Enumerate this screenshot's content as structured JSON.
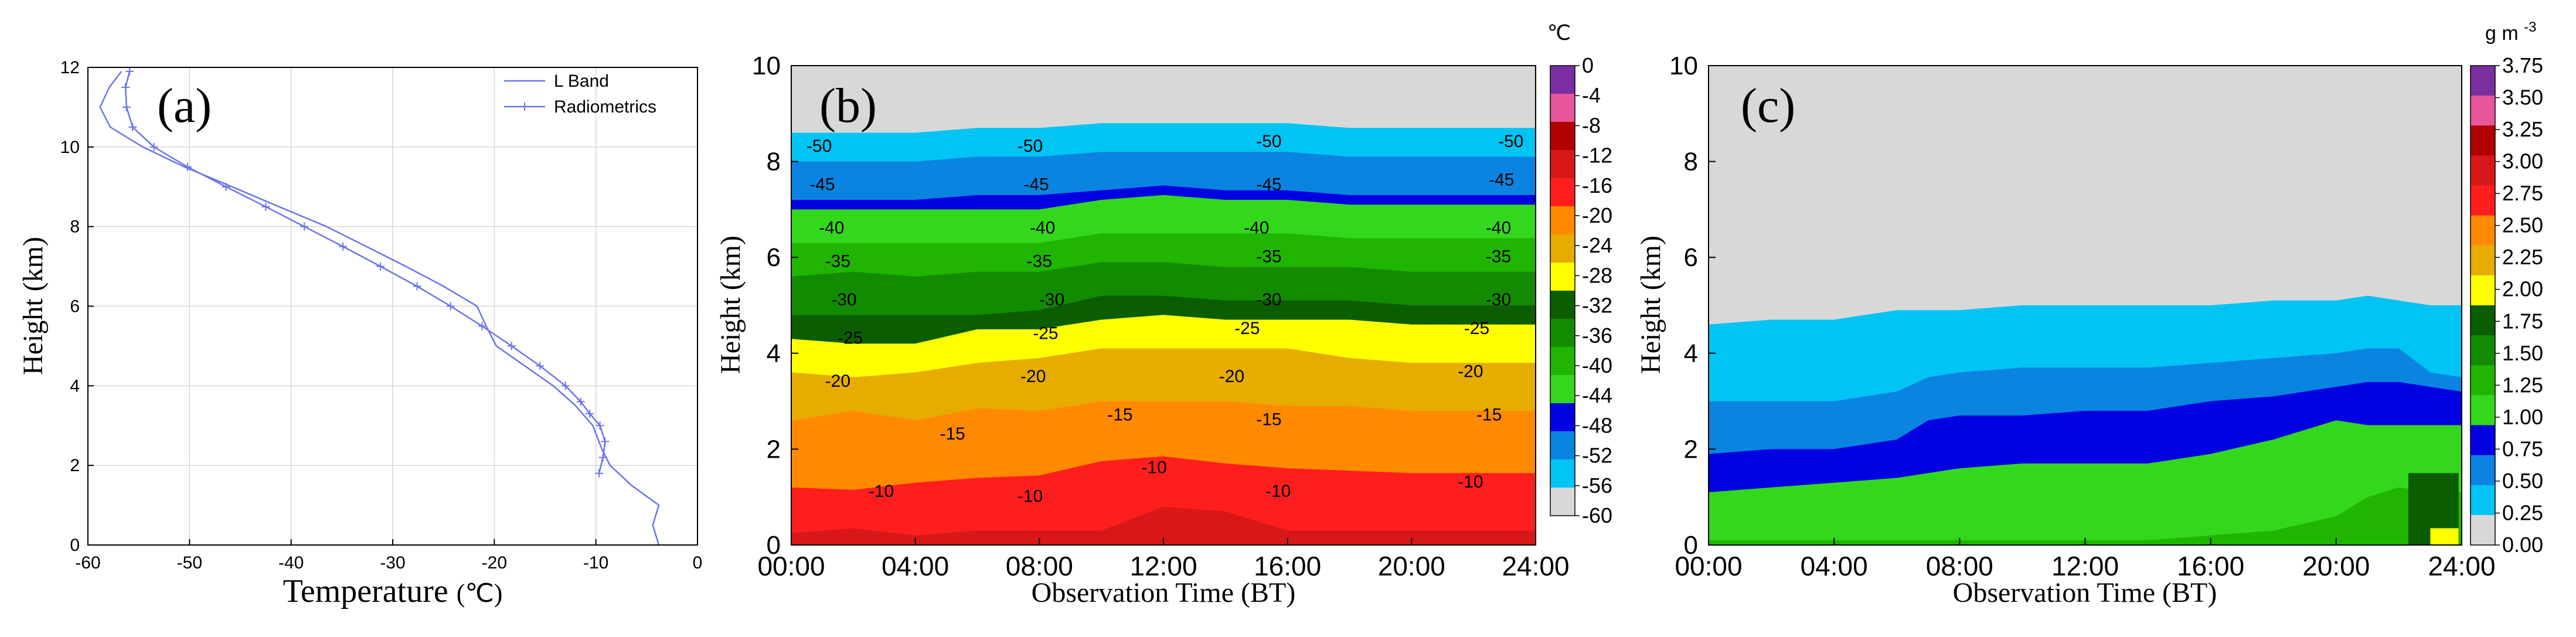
{
  "panels": {
    "a": {
      "label": "(a)",
      "chart_data": {
        "type": "line",
        "xlabel": "Temperature",
        "xlabel_unit": "(℃)",
        "ylabel": "Height (km)",
        "xlim": [
          -60,
          0
        ],
        "ylim": [
          0,
          12
        ],
        "x_ticks": [
          "-60",
          "-50",
          "-40",
          "-30",
          "-20",
          "-10",
          "0"
        ],
        "y_ticks": [
          "0",
          "2",
          "4",
          "6",
          "8",
          "10",
          "12"
        ],
        "grid": true,
        "legend_position": "top-right",
        "series": [
          {
            "name": "L Band",
            "color": "#6b74e8",
            "marker": "none",
            "points": [
              [
                -3.8,
                0
              ],
              [
                -4.4,
                0.5
              ],
              [
                -3.8,
                1.0
              ],
              [
                -6.5,
                1.5
              ],
              [
                -8.6,
                2.0
              ],
              [
                -9.4,
                2.4
              ],
              [
                -10.3,
                3.0
              ],
              [
                -12.0,
                3.5
              ],
              [
                -14.2,
                4.0
              ],
              [
                -17.0,
                4.5
              ],
              [
                -19.8,
                5.0
              ],
              [
                -20.8,
                5.5
              ],
              [
                -21.7,
                6.0
              ],
              [
                -25.0,
                6.5
              ],
              [
                -28.7,
                7.0
              ],
              [
                -32.6,
                7.5
              ],
              [
                -36.5,
                8.0
              ],
              [
                -41.2,
                8.5
              ],
              [
                -45.8,
                9.0
              ],
              [
                -50.5,
                9.5
              ],
              [
                -54.6,
                10.0
              ],
              [
                -57.8,
                10.5
              ],
              [
                -58.8,
                11.0
              ],
              [
                -57.9,
                11.5
              ],
              [
                -56.7,
                11.9
              ]
            ]
          },
          {
            "name": "Radiometrics",
            "color": "#6b74e8",
            "marker": "plus",
            "points": [
              [
                -9.7,
                1.8
              ],
              [
                -9.3,
                2.2
              ],
              [
                -9.1,
                2.6
              ],
              [
                -9.6,
                3.0
              ],
              [
                -10.6,
                3.3
              ],
              [
                -11.5,
                3.6
              ],
              [
                -13.0,
                4.0
              ],
              [
                -15.5,
                4.5
              ],
              [
                -18.3,
                5.0
              ],
              [
                -21.2,
                5.5
              ],
              [
                -24.3,
                6.0
              ],
              [
                -27.6,
                6.5
              ],
              [
                -31.2,
                7.0
              ],
              [
                -34.9,
                7.5
              ],
              [
                -38.7,
                8.0
              ],
              [
                -42.5,
                8.5
              ],
              [
                -46.4,
                9.0
              ],
              [
                -50.2,
                9.5
              ],
              [
                -53.5,
                10.0
              ],
              [
                -55.6,
                10.5
              ],
              [
                -56.2,
                11.0
              ],
              [
                -56.3,
                11.5
              ],
              [
                -55.9,
                11.9
              ]
            ]
          }
        ]
      }
    },
    "b": {
      "label": "(b)",
      "chart_data": {
        "type": "heatmap",
        "xlabel": "Observation Time",
        "xlabel_unit": "(BT)",
        "ylabel": "Height (km)",
        "xlim": [
          0,
          24
        ],
        "ylim": [
          0,
          10
        ],
        "x_ticks": [
          "00:00",
          "04:00",
          "08:00",
          "12:00",
          "16:00",
          "20:00",
          "24:00"
        ],
        "y_ticks": [
          "0",
          "2",
          "4",
          "6",
          "8",
          "10"
        ],
        "colorbar_unit": "℃",
        "colorbar_ticks": [
          "0",
          "-4",
          "-8",
          "-12",
          "-16",
          "-20",
          "-24",
          "-28",
          "-32",
          "-36",
          "-40",
          "-44",
          "-48",
          "-52",
          "-56",
          "-60"
        ],
        "colorbar_colors": [
          "#7a2fa0",
          "#e7559a",
          "#b00000",
          "#d81818",
          "#ff1e1e",
          "#ff8a00",
          "#e6ac00",
          "#ffff00",
          "#0a5e00",
          "#138b00",
          "#1fb500",
          "#33d81c",
          "#0000e0",
          "#0a84e0",
          "#00c4f4",
          "#d8d8d8"
        ],
        "band_tops_km": {
          "times_h": [
            0,
            2,
            4,
            6,
            8,
            10,
            12,
            14,
            16,
            18,
            20,
            22,
            24
          ],
          "-8": [
            0.25,
            0.35,
            0.2,
            0.3,
            0.3,
            0.3,
            0.8,
            0.7,
            0.3,
            0.3,
            0.3,
            0.3,
            0.3
          ],
          "-12": [
            1.2,
            1.15,
            1.3,
            1.4,
            1.45,
            1.75,
            1.85,
            1.7,
            1.6,
            1.55,
            1.5,
            1.5,
            1.5
          ],
          "-16": [
            2.6,
            2.8,
            2.6,
            2.85,
            2.8,
            3.0,
            3.0,
            3.0,
            2.9,
            2.9,
            2.8,
            2.8,
            2.8
          ],
          "-20": [
            3.6,
            3.5,
            3.6,
            3.8,
            3.9,
            4.1,
            4.1,
            4.1,
            4.1,
            3.9,
            3.8,
            3.8,
            3.8
          ],
          "-24": [
            4.3,
            4.2,
            4.2,
            4.5,
            4.5,
            4.7,
            4.8,
            4.7,
            4.7,
            4.7,
            4.6,
            4.6,
            4.6
          ],
          "-28": [
            4.8,
            4.8,
            4.8,
            4.8,
            4.9,
            5.2,
            5.2,
            5.1,
            5.1,
            5.1,
            5.0,
            5.0,
            5.0
          ],
          "-32": [
            5.6,
            5.7,
            5.6,
            5.7,
            5.7,
            5.9,
            5.9,
            5.8,
            5.8,
            5.8,
            5.7,
            5.7,
            5.7
          ],
          "-36": [
            6.3,
            6.3,
            6.3,
            6.3,
            6.3,
            6.5,
            6.5,
            6.5,
            6.5,
            6.4,
            6.4,
            6.4,
            6.4
          ],
          "-40": [
            7.0,
            7.0,
            7.0,
            7.0,
            7.0,
            7.2,
            7.3,
            7.2,
            7.2,
            7.1,
            7.1,
            7.1,
            7.1
          ],
          "-44": [
            7.2,
            7.2,
            7.2,
            7.3,
            7.3,
            7.4,
            7.5,
            7.4,
            7.4,
            7.3,
            7.3,
            7.3,
            7.3
          ],
          "-48": [
            8.0,
            8.0,
            8.0,
            8.1,
            8.1,
            8.2,
            8.2,
            8.2,
            8.2,
            8.1,
            8.1,
            8.1,
            8.1
          ],
          "-52": [
            8.6,
            8.6,
            8.6,
            8.7,
            8.7,
            8.8,
            8.8,
            8.8,
            8.8,
            8.7,
            8.7,
            8.7,
            8.7
          ],
          "-56": [
            10,
            10,
            10,
            10,
            10,
            10,
            10,
            10,
            10,
            10,
            10,
            10,
            10
          ]
        },
        "contour_labels": [
          {
            "text": "-50",
            "t": 0.9,
            "h": 8.2
          },
          {
            "text": "-50",
            "t": 7.7,
            "h": 8.2
          },
          {
            "text": "-50",
            "t": 15.4,
            "h": 8.3
          },
          {
            "text": "-50",
            "t": 23.2,
            "h": 8.3
          },
          {
            "text": "-45",
            "t": 1.0,
            "h": 7.4
          },
          {
            "text": "-45",
            "t": 7.9,
            "h": 7.4
          },
          {
            "text": "-45",
            "t": 15.4,
            "h": 7.4
          },
          {
            "text": "-45",
            "t": 22.9,
            "h": 7.5
          },
          {
            "text": "-40",
            "t": 1.3,
            "h": 6.5
          },
          {
            "text": "-40",
            "t": 8.1,
            "h": 6.5
          },
          {
            "text": "-40",
            "t": 15.0,
            "h": 6.5
          },
          {
            "text": "-40",
            "t": 22.8,
            "h": 6.5
          },
          {
            "text": "-35",
            "t": 1.5,
            "h": 5.8
          },
          {
            "text": "-35",
            "t": 8.0,
            "h": 5.8
          },
          {
            "text": "-35",
            "t": 15.4,
            "h": 5.9
          },
          {
            "text": "-35",
            "t": 22.8,
            "h": 5.9
          },
          {
            "text": "-30",
            "t": 1.7,
            "h": 5.0
          },
          {
            "text": "-30",
            "t": 8.4,
            "h": 5.0
          },
          {
            "text": "-30",
            "t": 15.4,
            "h": 5.0
          },
          {
            "text": "-30",
            "t": 22.8,
            "h": 5.0
          },
          {
            "text": "-25",
            "t": 1.9,
            "h": 4.2
          },
          {
            "text": "-25",
            "t": 8.2,
            "h": 4.3
          },
          {
            "text": "-25",
            "t": 14.7,
            "h": 4.4
          },
          {
            "text": "-25",
            "t": 22.1,
            "h": 4.4
          },
          {
            "text": "-20",
            "t": 1.5,
            "h": 3.3
          },
          {
            "text": "-20",
            "t": 7.8,
            "h": 3.4
          },
          {
            "text": "-20",
            "t": 14.2,
            "h": 3.4
          },
          {
            "text": "-20",
            "t": 21.9,
            "h": 3.5
          },
          {
            "text": "-15",
            "t": 5.2,
            "h": 2.2
          },
          {
            "text": "-15",
            "t": 10.6,
            "h": 2.6
          },
          {
            "text": "-15",
            "t": 15.4,
            "h": 2.5
          },
          {
            "text": "-15",
            "t": 22.5,
            "h": 2.6
          },
          {
            "text": "-10",
            "t": 2.9,
            "h": 1.0
          },
          {
            "text": "-10",
            "t": 7.7,
            "h": 0.9
          },
          {
            "text": "-10",
            "t": 11.7,
            "h": 1.5
          },
          {
            "text": "-10",
            "t": 15.7,
            "h": 1.0
          },
          {
            "text": "-10",
            "t": 21.9,
            "h": 1.2
          }
        ]
      }
    },
    "c": {
      "label": "(c)",
      "chart_data": {
        "type": "heatmap",
        "xlabel": "Observation Time",
        "xlabel_unit": "(BT)",
        "ylabel": "Height (km)",
        "xlim": [
          0,
          24
        ],
        "ylim": [
          0,
          10
        ],
        "x_ticks": [
          "00:00",
          "04:00",
          "08:00",
          "12:00",
          "16:00",
          "20:00",
          "24:00"
        ],
        "y_ticks": [
          "0",
          "2",
          "4",
          "6",
          "8",
          "10"
        ],
        "colorbar_unit": "g m",
        "colorbar_unit_exponent": "-3",
        "colorbar_ticks": [
          "3.75",
          "3.50",
          "3.25",
          "3.00",
          "2.75",
          "2.50",
          "2.25",
          "2.00",
          "1.75",
          "1.50",
          "1.25",
          "1.00",
          "0.75",
          "0.50",
          "0.25",
          "0.00"
        ],
        "colorbar_colors": [
          "#7a2fa0",
          "#e7559a",
          "#b00000",
          "#d81818",
          "#ff1e1e",
          "#ff8a00",
          "#e6ac00",
          "#ffff00",
          "#0a5e00",
          "#138b00",
          "#1fb500",
          "#33d81c",
          "#0000e0",
          "#0a84e0",
          "#00c4f4",
          "#d8d8d8"
        ],
        "band_tops_km": {
          "times_h": [
            0,
            2,
            4,
            6,
            7,
            8,
            10,
            12,
            14,
            16,
            18,
            20,
            21,
            22,
            23,
            24
          ],
          "1.00": [
            0.1,
            0.1,
            0.1,
            0.1,
            0.1,
            0.1,
            0.1,
            0.1,
            0.1,
            0.2,
            0.3,
            0.6,
            1.0,
            1.2,
            1.1,
            1.1
          ],
          "0.75": [
            1.1,
            1.2,
            1.3,
            1.4,
            1.5,
            1.6,
            1.7,
            1.7,
            1.7,
            1.9,
            2.2,
            2.6,
            2.5,
            2.5,
            2.5,
            2.5
          ],
          "0.50": [
            1.9,
            2.0,
            2.0,
            2.2,
            2.6,
            2.7,
            2.7,
            2.8,
            2.8,
            3.0,
            3.1,
            3.3,
            3.4,
            3.4,
            3.3,
            3.2
          ],
          "0.25": [
            3.0,
            3.0,
            3.0,
            3.2,
            3.5,
            3.6,
            3.7,
            3.7,
            3.7,
            3.8,
            3.9,
            4.0,
            4.1,
            4.1,
            3.6,
            3.5
          ],
          "0.00": [
            4.6,
            4.7,
            4.7,
            4.9,
            4.9,
            4.9,
            5.0,
            5.0,
            5.0,
            5.0,
            5.1,
            5.1,
            5.2,
            5.1,
            5.0,
            5.0
          ]
        }
      }
    }
  }
}
